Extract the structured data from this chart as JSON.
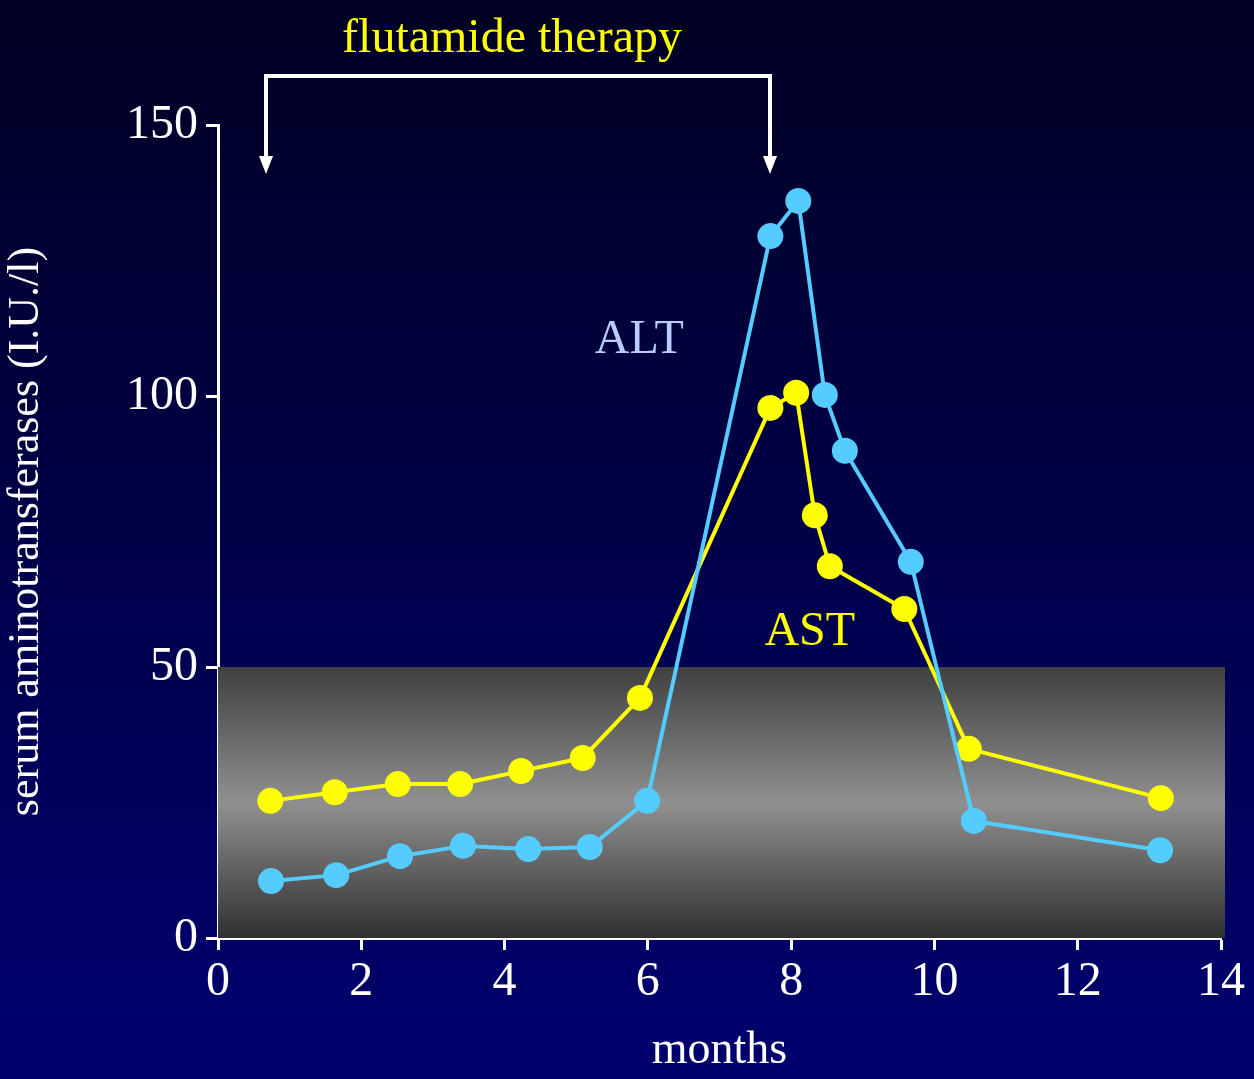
{
  "chart_data": {
    "type": "line",
    "xlabel": "months",
    "ylabel": "serum aminotransferases (I.U./l)",
    "annotations": [
      "flutamide therapy"
    ],
    "xlim": [
      0,
      14
    ],
    "xticks": [
      0,
      2,
      4,
      6,
      8,
      10,
      12,
      14
    ],
    "ylim": [
      0,
      150
    ],
    "yticks": [
      0,
      50,
      100,
      150
    ],
    "marker": "circle",
    "line_style": "solid",
    "legend": false,
    "bands": [
      {
        "axis": "y",
        "from": 0,
        "to": 50,
        "color": "#909090"
      }
    ],
    "series": [
      {
        "name": "ALT",
        "color": "#55ccff",
        "x": [
          0.74,
          1.65,
          2.54,
          3.42,
          4.33,
          5.19,
          5.99,
          7.71,
          8.1,
          8.47,
          8.75,
          9.67,
          10.55,
          13.15
        ],
        "values": [
          10.5,
          11.6,
          15.1,
          17,
          16.4,
          16.8,
          25.3,
          129.5,
          136,
          100.2,
          89.9,
          69.4,
          21.6,
          16.2
        ]
      },
      {
        "name": "AST",
        "color": "#ffff00",
        "x": [
          0.73,
          1.63,
          2.51,
          3.38,
          4.23,
          5.09,
          5.89,
          7.71,
          8.07,
          8.33,
          8.54,
          9.58,
          10.48,
          13.16
        ],
        "values": [
          25.3,
          26.9,
          28.4,
          28.4,
          30.8,
          33.2,
          44.3,
          97.8,
          100.6,
          78,
          68.6,
          60.7,
          34.9,
          25.8
        ]
      }
    ]
  }
}
